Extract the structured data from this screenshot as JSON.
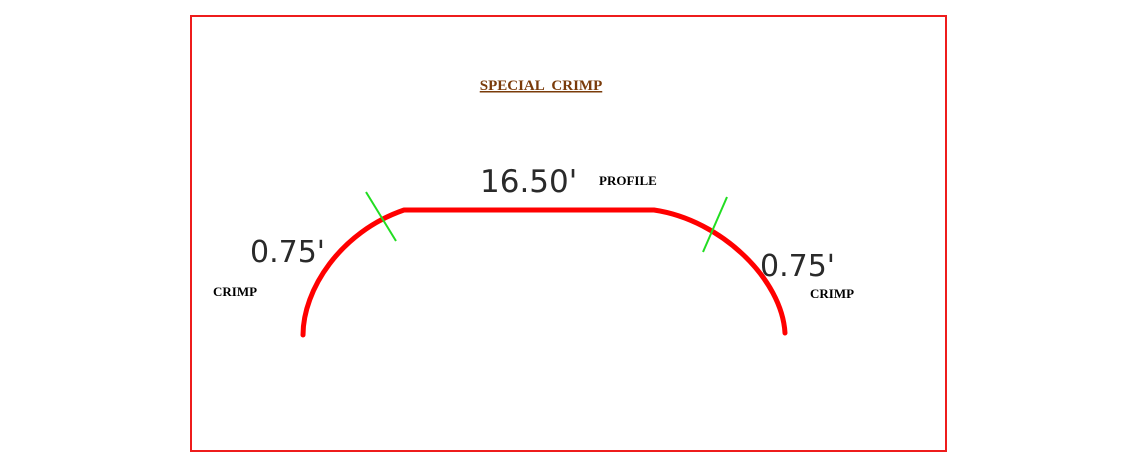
{
  "title": "SPECIAL  CRIMP",
  "dimensions": {
    "left_crimp_length": "0.75'",
    "profile_length": "16.50'",
    "right_crimp_length": "0.75'"
  },
  "labels": {
    "left_crimp": "CRIMP",
    "profile": "PROFILE",
    "right_crimp": "CRIMP"
  },
  "colors": {
    "frame": "#ee1c1c",
    "profile_line": "#ff0000",
    "segment_marker": "#22dd22",
    "title": "#7a3b0a"
  }
}
